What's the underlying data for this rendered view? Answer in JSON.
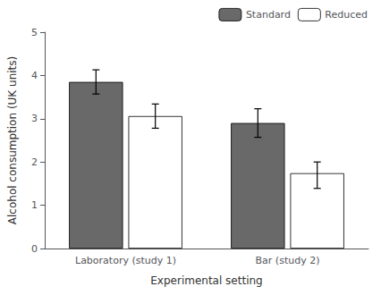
{
  "chart_data": {
    "type": "bar",
    "categories": [
      "Laboratory (study 1)",
      "Bar (study 2)"
    ],
    "series": [
      {
        "name": "Standard",
        "color": "#696969",
        "values": [
          3.85,
          2.9
        ],
        "error_lower": [
          0.28,
          0.33
        ],
        "error_upper": [
          0.28,
          0.33
        ]
      },
      {
        "name": "Reduced",
        "color": "#ffffff",
        "values": [
          3.06,
          1.74
        ],
        "error_lower": [
          0.28,
          0.35
        ],
        "error_upper": [
          0.28,
          0.26
        ]
      }
    ],
    "xlabel": "Experimental setting",
    "ylabel": "Alcohol consumption (UK units)",
    "ylim": [
      0,
      5
    ],
    "yticks": [
      0,
      1,
      2,
      3,
      4,
      5
    ],
    "grid": false,
    "legend": "upper right"
  }
}
